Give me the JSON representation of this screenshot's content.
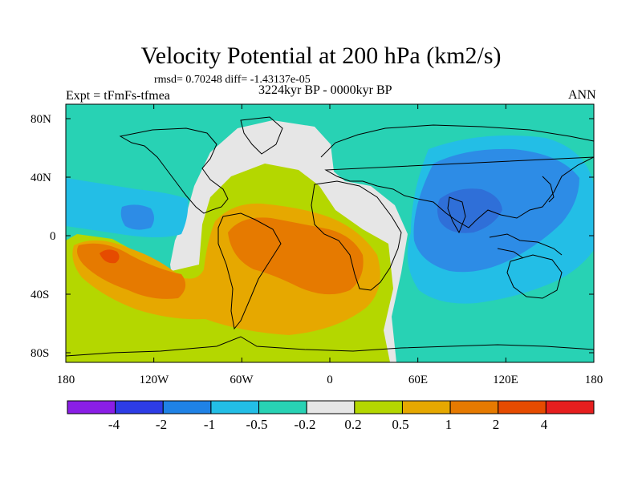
{
  "title": "Velocity Potential at 200 hPa (km2/s)",
  "stats_line": "rmsd= 0.70248 diff= -1.43137e-05",
  "experiment": "Expt = tFmFs-tfmea",
  "period": "3224kyr BP - 0000kyr BP",
  "season": "ANN",
  "axes": {
    "y_ticks": [
      "80N",
      "40N",
      "0",
      "40S",
      "80S"
    ],
    "x_ticks": [
      "180",
      "120W",
      "60W",
      "0",
      "60E",
      "120E",
      "180"
    ]
  },
  "colorbar": {
    "colors": [
      "#8a1ee6",
      "#2d3ce6",
      "#1f82e6",
      "#23bee6",
      "#28d2b4",
      "#e6e6e6",
      "#b4d700",
      "#e6a800",
      "#e67a00",
      "#e64b00",
      "#e61e1e"
    ],
    "labels": [
      "-4",
      "-2",
      "-1",
      "-0.5",
      "-0.2",
      "0.2",
      "0.5",
      "1",
      "2",
      "4"
    ]
  },
  "field_colors": {
    "neg2": "#2d8ce6",
    "neg1": "#23bee6",
    "neg05": "#28d2b4",
    "zero": "#e6e6e6",
    "pos02": "#b4d700",
    "pos05": "#e6a800",
    "pos1": "#e67a00",
    "pos2": "#e64b00",
    "coast": "#000000"
  }
}
